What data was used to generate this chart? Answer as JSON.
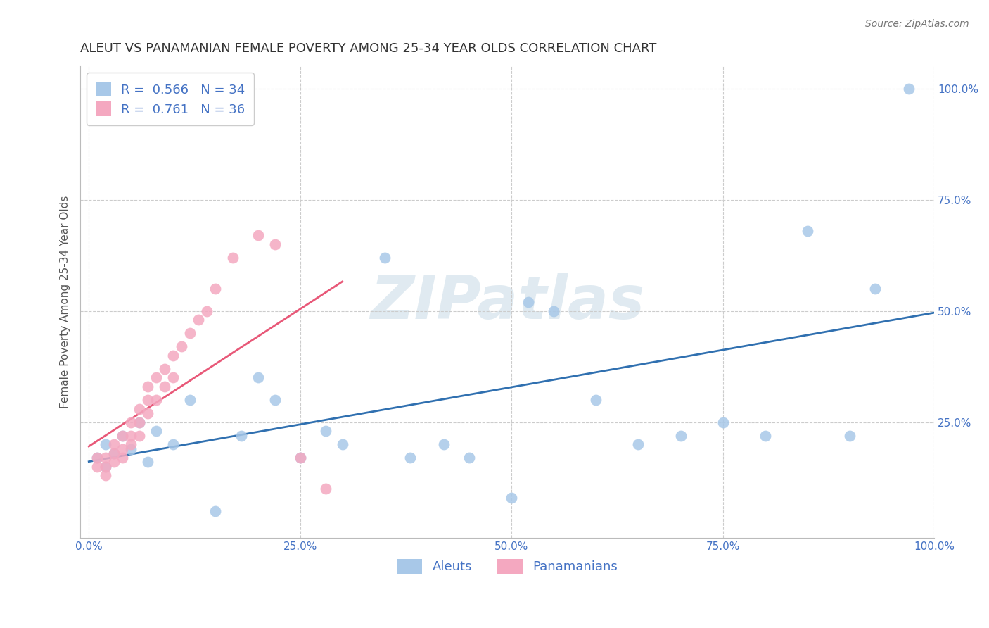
{
  "title": "ALEUT VS PANAMANIAN FEMALE POVERTY AMONG 25-34 YEAR OLDS CORRELATION CHART",
  "source": "Source: ZipAtlas.com",
  "ylabel": "Female Poverty Among 25-34 Year Olds",
  "aleut_color": "#a8c8e8",
  "panamanian_color": "#f4a8c0",
  "aleut_line_color": "#3070b0",
  "panamanian_line_color": "#e8506080",
  "aleut_R": "0.566",
  "aleut_N": "34",
  "panamanian_R": "0.761",
  "panamanian_N": "36",
  "watermark_text": "ZIPatlas",
  "aleut_x": [
    0.01,
    0.02,
    0.02,
    0.03,
    0.04,
    0.05,
    0.06,
    0.07,
    0.08,
    0.1,
    0.12,
    0.15,
    0.18,
    0.2,
    0.22,
    0.25,
    0.28,
    0.3,
    0.35,
    0.38,
    0.42,
    0.45,
    0.5,
    0.52,
    0.55,
    0.6,
    0.65,
    0.7,
    0.75,
    0.8,
    0.85,
    0.9,
    0.93,
    0.97
  ],
  "aleut_y": [
    0.17,
    0.2,
    0.15,
    0.18,
    0.22,
    0.19,
    0.25,
    0.16,
    0.23,
    0.2,
    0.3,
    0.05,
    0.22,
    0.35,
    0.3,
    0.17,
    0.23,
    0.2,
    0.62,
    0.17,
    0.2,
    0.17,
    0.08,
    0.52,
    0.5,
    0.3,
    0.2,
    0.22,
    0.25,
    0.22,
    0.68,
    0.22,
    0.55,
    1.0
  ],
  "pan_x": [
    0.01,
    0.01,
    0.02,
    0.02,
    0.02,
    0.03,
    0.03,
    0.03,
    0.04,
    0.04,
    0.04,
    0.05,
    0.05,
    0.05,
    0.06,
    0.06,
    0.06,
    0.07,
    0.07,
    0.07,
    0.08,
    0.08,
    0.09,
    0.09,
    0.1,
    0.1,
    0.11,
    0.12,
    0.13,
    0.14,
    0.15,
    0.17,
    0.2,
    0.22,
    0.25,
    0.28
  ],
  "pan_y": [
    0.15,
    0.17,
    0.13,
    0.15,
    0.17,
    0.16,
    0.18,
    0.2,
    0.17,
    0.19,
    0.22,
    0.2,
    0.22,
    0.25,
    0.22,
    0.25,
    0.28,
    0.27,
    0.3,
    0.33,
    0.3,
    0.35,
    0.33,
    0.37,
    0.35,
    0.4,
    0.42,
    0.45,
    0.48,
    0.5,
    0.55,
    0.62,
    0.67,
    0.65,
    0.17,
    0.1
  ],
  "title_fontsize": 13,
  "ylabel_fontsize": 11,
  "tick_fontsize": 11,
  "legend_fontsize": 13,
  "source_fontsize": 10,
  "xticks": [
    0.0,
    0.25,
    0.5,
    0.75,
    1.0
  ],
  "xticklabels": [
    "0.0%",
    "25.0%",
    "50.0%",
    "75.0%",
    "100.0%"
  ],
  "yticks": [
    0.25,
    0.5,
    0.75,
    1.0
  ],
  "yticklabels": [
    "25.0%",
    "50.0%",
    "75.0%",
    "100.0%"
  ]
}
